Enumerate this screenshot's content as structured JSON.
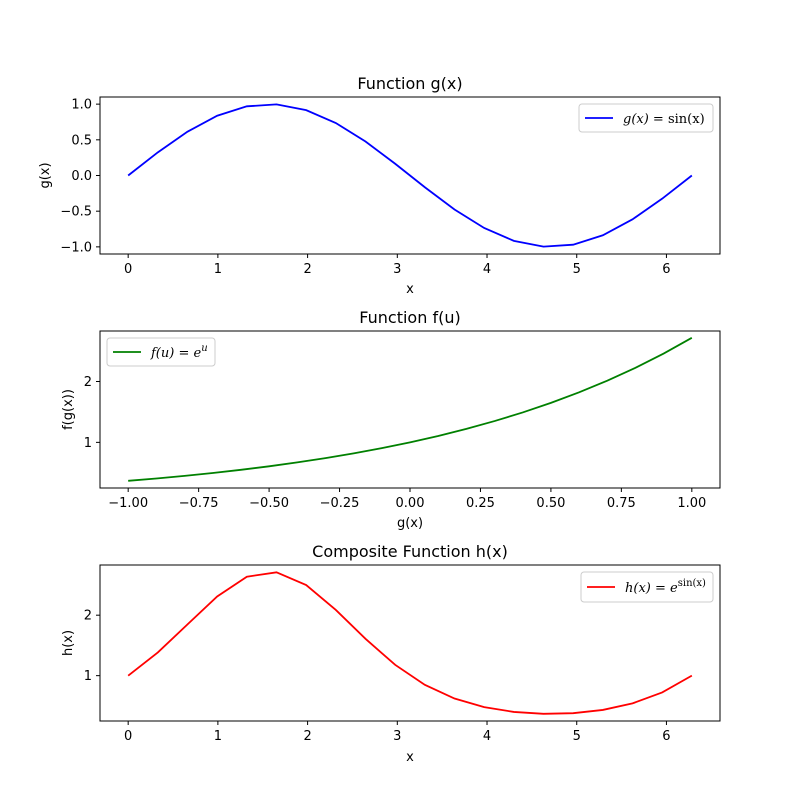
{
  "chart_data": [
    {
      "type": "line",
      "title": "Function g(x)",
      "xlabel": "x",
      "ylabel": "g(x)",
      "xlim": [
        -0.314,
        6.597
      ],
      "ylim": [
        -1.1,
        1.1
      ],
      "xticks": [
        0,
        1,
        2,
        3,
        4,
        5,
        6
      ],
      "xtick_labels": [
        "0",
        "1",
        "2",
        "3",
        "4",
        "5",
        "6"
      ],
      "yticks": [
        -1.0,
        -0.5,
        0.0,
        0.5,
        1.0
      ],
      "ytick_labels": [
        "−1.0",
        "−0.5",
        "0.0",
        "0.5",
        "1.0"
      ],
      "legend_position": "top-right",
      "series": [
        {
          "name": "g(x) = sin(x)",
          "color": "#0000ff",
          "x": [
            0,
            0.3307,
            0.6614,
            0.9921,
            1.3228,
            1.6535,
            1.9842,
            2.3149,
            2.6456,
            2.9762,
            3.3069,
            3.6376,
            3.9683,
            4.299,
            4.6297,
            4.9604,
            5.2911,
            5.6218,
            5.9525,
            6.2832
          ],
          "y": [
            0,
            0.3247,
            0.6142,
            0.8372,
            0.9694,
            0.9966,
            0.9158,
            0.7357,
            0.4759,
            0.1646,
            -0.1646,
            -0.4759,
            -0.7357,
            -0.9158,
            -0.9966,
            -0.9694,
            -0.8372,
            -0.6142,
            -0.3247,
            0
          ]
        }
      ]
    },
    {
      "type": "line",
      "title": "Function f(u)",
      "xlabel": "g(x)",
      "ylabel": "f(g(x))",
      "xlim": [
        -1.1,
        1.1
      ],
      "ylim": [
        0.25,
        2.83
      ],
      "xticks": [
        -1.0,
        -0.75,
        -0.5,
        -0.25,
        0.0,
        0.25,
        0.5,
        0.75,
        1.0
      ],
      "xtick_labels": [
        "−1.00",
        "−0.75",
        "−0.50",
        "−0.25",
        "0.00",
        "0.25",
        "0.50",
        "0.75",
        "1.00"
      ],
      "yticks": [
        1,
        2
      ],
      "ytick_labels": [
        "1",
        "2"
      ],
      "legend_position": "top-left",
      "series": [
        {
          "name": "f(u) = e^u",
          "color": "#008000",
          "x": [
            -1.0,
            -0.9,
            -0.8,
            -0.7,
            -0.6,
            -0.5,
            -0.4,
            -0.3,
            -0.2,
            -0.1,
            0.0,
            0.1,
            0.2,
            0.3,
            0.4,
            0.5,
            0.6,
            0.7,
            0.8,
            0.9,
            1.0
          ],
          "y": [
            0.3679,
            0.4066,
            0.4493,
            0.4966,
            0.5488,
            0.6065,
            0.6703,
            0.7408,
            0.8187,
            0.9048,
            1.0,
            1.1052,
            1.2214,
            1.3499,
            1.4918,
            1.6487,
            1.8221,
            2.0138,
            2.2255,
            2.4596,
            2.7183
          ]
        }
      ]
    },
    {
      "type": "line",
      "title": "Composite Function h(x)",
      "xlabel": "x",
      "ylabel": "h(x)",
      "xlim": [
        -0.314,
        6.597
      ],
      "ylim": [
        0.25,
        2.83
      ],
      "xticks": [
        0,
        1,
        2,
        3,
        4,
        5,
        6
      ],
      "xtick_labels": [
        "0",
        "1",
        "2",
        "3",
        "4",
        "5",
        "6"
      ],
      "yticks": [
        1,
        2
      ],
      "ytick_labels": [
        "1",
        "2"
      ],
      "legend_position": "top-right",
      "series": [
        {
          "name": "h(x) = e^sin(x)",
          "color": "#ff0000",
          "x": [
            0,
            0.3307,
            0.6614,
            0.9921,
            1.3228,
            1.6535,
            1.9842,
            2.3149,
            2.6456,
            2.9762,
            3.3069,
            3.6376,
            3.9683,
            4.299,
            4.6297,
            4.9604,
            5.2911,
            5.6218,
            5.9525,
            6.2832
          ],
          "y": [
            1.0,
            1.3836,
            1.8483,
            2.3098,
            2.6364,
            2.7091,
            2.4988,
            2.0868,
            1.6095,
            1.1789,
            0.8482,
            0.6213,
            0.4792,
            0.4002,
            0.3692,
            0.3793,
            0.4329,
            0.541,
            0.7228,
            1.0
          ]
        }
      ]
    }
  ],
  "legend_labels": {
    "g": {
      "lhs": "g(x)",
      "eq": " = ",
      "rhs": "sin(x)"
    },
    "f": {
      "lhs": "f(u)",
      "eq": " = ",
      "base": "e",
      "sup": "u"
    },
    "h": {
      "lhs": "h(x)",
      "eq": " = ",
      "base": "e",
      "sup": "sin(x)"
    }
  }
}
